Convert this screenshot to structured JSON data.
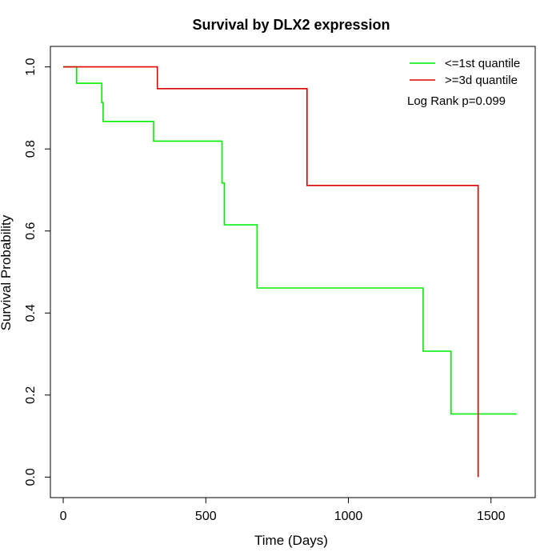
{
  "chart_data": {
    "type": "line",
    "title": "Survival by DLX2 expression",
    "xlabel": "Time (Days)",
    "ylabel": "Survival Probability",
    "xlim": [
      -45,
      1655
    ],
    "ylim": [
      -0.05,
      1.05
    ],
    "xticks": [
      0,
      500,
      1000,
      1500
    ],
    "yticks": [
      0.0,
      0.2,
      0.4,
      0.6,
      0.8,
      1.0
    ],
    "xtick_labels": [
      "0",
      "500",
      "1000",
      "1500"
    ],
    "ytick_labels": [
      "0.0",
      "0.2",
      "0.4",
      "0.6",
      "0.8",
      "1.0"
    ],
    "grid": false,
    "legend_position": "top-right",
    "annotation": "Log Rank p=0.099",
    "series": [
      {
        "name": "<=1st quantile",
        "color": "#00ee00",
        "step": true,
        "x": [
          0,
          47,
          47,
          135,
          135,
          140,
          140,
          317,
          317,
          557,
          557,
          565,
          565,
          680,
          680,
          1262,
          1262,
          1360,
          1360,
          1590
        ],
        "y": [
          1.0,
          1.0,
          0.96,
          0.96,
          0.913,
          0.913,
          0.867,
          0.867,
          0.819,
          0.819,
          0.717,
          0.717,
          0.615,
          0.615,
          0.461,
          0.461,
          0.307,
          0.307,
          0.154,
          0.154
        ]
      },
      {
        "name": ">=3d quantile",
        "color": "#dd0000",
        "step": true,
        "x": [
          0,
          330,
          330,
          855,
          855,
          1455,
          1455
        ],
        "y": [
          1.0,
          1.0,
          0.947,
          0.947,
          0.711,
          0.711,
          0.0
        ]
      }
    ]
  }
}
